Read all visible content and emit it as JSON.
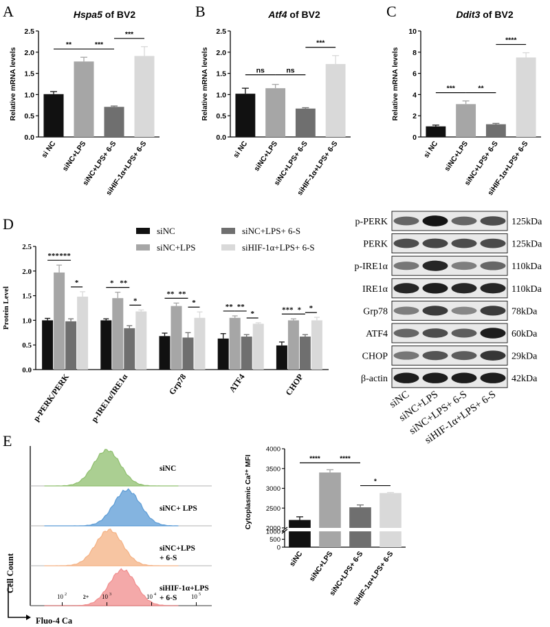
{
  "panels": {
    "A": {
      "letter": "A",
      "gene": "Hspa5",
      "suffix": " of BV2"
    },
    "B": {
      "letter": "B",
      "gene": "Atf4",
      "suffix": " of BV2"
    },
    "C": {
      "letter": "C",
      "gene": "Ddit3",
      "suffix": " of BV2"
    },
    "D": {
      "letter": "D"
    },
    "E": {
      "letter": "E"
    }
  },
  "colors": {
    "black": "#111111",
    "dark_gray": "#6f6f6f",
    "mid_gray": "#a6a6a6",
    "light_gray": "#d9d9d9",
    "green": "#8fbf6e",
    "blue": "#5b9bd5",
    "orange": "#f4b183",
    "red": "#f08c8c"
  },
  "chart_data": [
    {
      "id": "A",
      "type": "bar",
      "title": "Hspa5 of BV2",
      "ylabel": "Relative mRNA levels",
      "categories": [
        "si NC",
        "siNC+LPS",
        "siNC+LPS+ 6-S",
        "siHIF-1α+LPS+ 6-S"
      ],
      "values": [
        1.01,
        1.78,
        0.71,
        1.91
      ],
      "errors": [
        0.06,
        0.1,
        0.02,
        0.22
      ],
      "ylim": [
        0,
        2.5
      ],
      "yticks": [
        "0.0",
        "0.5",
        "1.0",
        "1.5",
        "2.0",
        "2.5"
      ],
      "significance": [
        {
          "from": 0,
          "to": 1,
          "label": "**"
        },
        {
          "from": 1,
          "to": 2,
          "label": "***"
        },
        {
          "from": 2,
          "to": 3,
          "label": "***"
        }
      ]
    },
    {
      "id": "B",
      "type": "bar",
      "title": "Atf4 of BV2",
      "ylabel": "Relative mRNA levels",
      "categories": [
        "si NC",
        "siNC+LPS",
        "siNC+LPS+ 6-S",
        "siHIF-1α+LPS+ 6-S"
      ],
      "values": [
        1.02,
        1.15,
        0.67,
        1.72
      ],
      "errors": [
        0.13,
        0.09,
        0.02,
        0.2
      ],
      "ylim": [
        0,
        2.5
      ],
      "yticks": [
        "0.0",
        "0.5",
        "1.0",
        "1.5",
        "2.0",
        "2.5"
      ],
      "significance": [
        {
          "from": 0,
          "to": 1,
          "label": "ns"
        },
        {
          "from": 1,
          "to": 2,
          "label": "ns"
        },
        {
          "from": 2,
          "to": 3,
          "label": "***"
        }
      ]
    },
    {
      "id": "C",
      "type": "bar",
      "title": "Ddit3 of BV2",
      "ylabel": "Relative mRNA levels",
      "categories": [
        "si NC",
        "siNC+LPS",
        "siNC+LPS+ 6-S",
        "siHIF-1α+LPS+ 6-S"
      ],
      "values": [
        1.0,
        3.1,
        1.2,
        7.5
      ],
      "errors": [
        0.12,
        0.3,
        0.08,
        0.45
      ],
      "ylim": [
        0,
        10
      ],
      "yticks": [
        "0",
        "2",
        "4",
        "6",
        "8",
        "10"
      ],
      "significance": [
        {
          "from": 0,
          "to": 1,
          "label": "***"
        },
        {
          "from": 1,
          "to": 2,
          "label": "**"
        },
        {
          "from": 2,
          "to": 3,
          "label": "****"
        }
      ]
    },
    {
      "id": "D",
      "type": "bar",
      "ylabel": "Protein Level",
      "categories": [
        "p-PERK/PERK",
        "p-IRE1α/IRE1α",
        "Grp78",
        "ATF4",
        "CHOP"
      ],
      "series": [
        {
          "name": "siNC",
          "values": [
            1.0,
            1.0,
            0.68,
            0.63,
            0.49
          ],
          "errors": [
            0.04,
            0.03,
            0.06,
            0.1,
            0.07
          ]
        },
        {
          "name": "siNC+LPS",
          "values": [
            1.97,
            1.45,
            1.29,
            1.05,
            1.0
          ],
          "errors": [
            0.15,
            0.12,
            0.06,
            0.04,
            0.03
          ]
        },
        {
          "name": "siNC+LPS+ 6-S",
          "values": [
            0.98,
            0.84,
            0.65,
            0.67,
            0.67
          ],
          "errors": [
            0.05,
            0.05,
            0.1,
            0.04,
            0.04
          ]
        },
        {
          "name": "siHIF-1α+LPS+ 6-S",
          "values": [
            1.48,
            1.18,
            1.05,
            0.93,
            1.0
          ],
          "errors": [
            0.1,
            0.03,
            0.12,
            0.02,
            0.06
          ]
        }
      ],
      "ylim": [
        0,
        2.5
      ],
      "yticks": [
        "0.0",
        "0.5",
        "1.0",
        "1.5",
        "2.0",
        "2.5"
      ],
      "significance": [
        {
          "group": 0,
          "from": 0,
          "to": 1,
          "label": "***"
        },
        {
          "group": 0,
          "from": 1,
          "to": 2,
          "label": "***"
        },
        {
          "group": 0,
          "from": 2,
          "to": 3,
          "label": "*"
        },
        {
          "group": 1,
          "from": 0,
          "to": 1,
          "label": "*"
        },
        {
          "group": 1,
          "from": 1,
          "to": 2,
          "label": "**"
        },
        {
          "group": 1,
          "from": 2,
          "to": 3,
          "label": "*"
        },
        {
          "group": 2,
          "from": 0,
          "to": 1,
          "label": "**"
        },
        {
          "group": 2,
          "from": 1,
          "to": 2,
          "label": "**"
        },
        {
          "group": 2,
          "from": 2,
          "to": 3,
          "label": "*"
        },
        {
          "group": 3,
          "from": 0,
          "to": 1,
          "label": "**"
        },
        {
          "group": 3,
          "from": 1,
          "to": 2,
          "label": "**"
        },
        {
          "group": 3,
          "from": 2,
          "to": 3,
          "label": "*"
        },
        {
          "group": 4,
          "from": 0,
          "to": 1,
          "label": "***"
        },
        {
          "group": 4,
          "from": 1,
          "to": 2,
          "label": "*"
        },
        {
          "group": 4,
          "from": 2,
          "to": 3,
          "label": "*"
        }
      ]
    },
    {
      "id": "E",
      "type": "bar",
      "ylabel": "Cytoplasmic Ca²⁺ MFI",
      "categories": [
        "siNC",
        "siNC+LPS",
        "siNC+LPS+ 6-S",
        "siHIF-1α+LPS+ 6-S"
      ],
      "values": [
        2200,
        3400,
        2520,
        2880
      ],
      "errors": [
        80,
        70,
        60,
        15
      ],
      "ylim": [
        0,
        4000
      ],
      "axis_break": [
        1000,
        2000
      ],
      "yticks": [
        "0",
        "500",
        "1000",
        "2000",
        "2500",
        "3000",
        "3500",
        "4000"
      ],
      "significance": [
        {
          "from": 0,
          "to": 1,
          "label": "****"
        },
        {
          "from": 1,
          "to": 2,
          "label": "****"
        },
        {
          "from": 2,
          "to": 3,
          "label": "*"
        }
      ]
    }
  ],
  "western": {
    "rows": [
      {
        "protein": "p-PERK",
        "kda": "125kDa"
      },
      {
        "protein": "PERK",
        "kda": "125kDa"
      },
      {
        "protein": "p-IRE1α",
        "kda": "110kDa"
      },
      {
        "protein": "IRE1α",
        "kda": "110kDa"
      },
      {
        "protein": "Grp78",
        "kda": "78kDa"
      },
      {
        "protein": "ATF4",
        "kda": "60kDa"
      },
      {
        "protein": "CHOP",
        "kda": "29kDa"
      },
      {
        "protein": "β-actin",
        "kda": "42kDa"
      }
    ],
    "lanes": [
      "siNC",
      "siNC+LPS",
      "siNC+LPS+ 6-S",
      "siHIF-1α+LPS+ 6-S"
    ]
  },
  "flow": {
    "ylabel": "Cell Count",
    "xlabel": "Fluo-4 Ca",
    "xlabel_sup": "2+",
    "xticks": [
      "10",
      "10",
      "10",
      "10"
    ],
    "xtick_exps": [
      "2",
      "3",
      "4",
      "5"
    ],
    "tracks": [
      {
        "label": "siNC",
        "label2": "",
        "peak_log": 3.0,
        "color": "#8fbf6e"
      },
      {
        "label": "siNC+ LPS",
        "label2": "",
        "peak_log": 3.45,
        "color": "#5b9bd5"
      },
      {
        "label": "siNC+LPS",
        "label2": "+ 6-S",
        "peak_log": 3.05,
        "color": "#f4b183"
      },
      {
        "label": "siHIF-1α+LPS",
        "label2": "+ 6-S",
        "peak_log": 3.35,
        "color": "#f08c8c"
      }
    ]
  }
}
